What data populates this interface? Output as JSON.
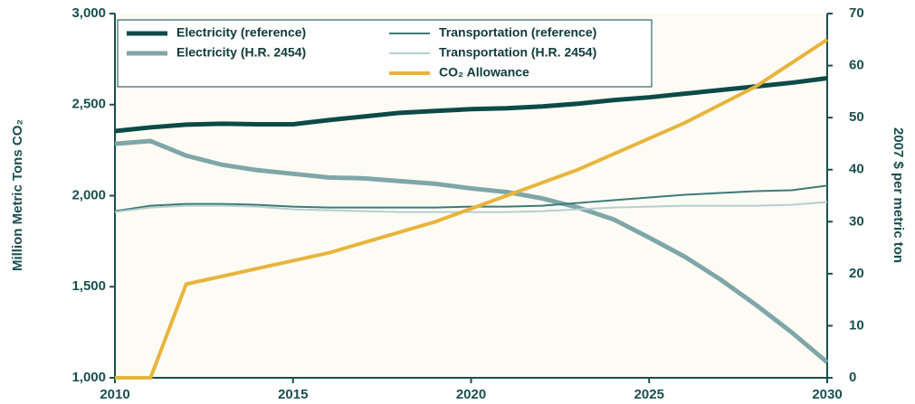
{
  "chart_data": {
    "type": "line",
    "ylabel": "Million Metric Tons CO₂",
    "y2label": "2007 $ per metric ton",
    "x": [
      2010,
      2011,
      2012,
      2013,
      2014,
      2015,
      2016,
      2017,
      2018,
      2019,
      2020,
      2021,
      2022,
      2023,
      2024,
      2025,
      2026,
      2027,
      2028,
      2029,
      2030
    ],
    "xlim": [
      2010,
      2030
    ],
    "xticks": [
      2010,
      2015,
      2020,
      2025,
      2030
    ],
    "ylim": [
      1000,
      3000
    ],
    "yticks": [
      {
        "value": 1000,
        "label": "1,000"
      },
      {
        "value": 1500,
        "label": "1,500"
      },
      {
        "value": 2000,
        "label": "2,000"
      },
      {
        "value": 2500,
        "label": "2,500"
      },
      {
        "value": 3000,
        "label": "3,000"
      }
    ],
    "y2lim": [
      0,
      70
    ],
    "y2ticks": [
      0,
      10,
      20,
      30,
      40,
      50,
      60,
      70
    ],
    "series": [
      {
        "name": "Electricity (reference)",
        "color": "#0d4a48",
        "width": 5,
        "values": [
          2355,
          2375,
          2390,
          2395,
          2392,
          2392,
          2415,
          2435,
          2455,
          2465,
          2475,
          2480,
          2490,
          2505,
          2525,
          2540,
          2560,
          2580,
          2600,
          2620,
          2645
        ]
      },
      {
        "name": "Electricity (H.R. 2454)",
        "color": "#7fa6a9",
        "width": 5,
        "values": [
          2285,
          2300,
          2220,
          2170,
          2140,
          2120,
          2100,
          2095,
          2080,
          2065,
          2040,
          2020,
          1985,
          1935,
          1870,
          1770,
          1665,
          1540,
          1400,
          1250,
          1085
        ]
      },
      {
        "name": "Transportation (reference)",
        "color": "#3d7a78",
        "width": 2,
        "values": [
          1915,
          1945,
          1955,
          1955,
          1950,
          1940,
          1935,
          1935,
          1935,
          1935,
          1940,
          1940,
          1945,
          1960,
          1975,
          1990,
          2005,
          2015,
          2025,
          2030,
          2055
        ]
      },
      {
        "name": "Transportation (H.R. 2454)",
        "color": "#b5cfd0",
        "width": 2,
        "values": [
          1910,
          1935,
          1945,
          1945,
          1940,
          1925,
          1920,
          1915,
          1910,
          1910,
          1910,
          1910,
          1915,
          1925,
          1935,
          1940,
          1945,
          1945,
          1945,
          1950,
          1965
        ]
      },
      {
        "name": "CO₂ Allowance",
        "color": "#e8b43c",
        "width": 4,
        "axis": "y2",
        "values": [
          0,
          0,
          18,
          19.5,
          21,
          22.5,
          24,
          26,
          28,
          30,
          32.5,
          35,
          37.5,
          40,
          43,
          46,
          49,
          52.5,
          56,
          60.5,
          65
        ]
      }
    ]
  }
}
